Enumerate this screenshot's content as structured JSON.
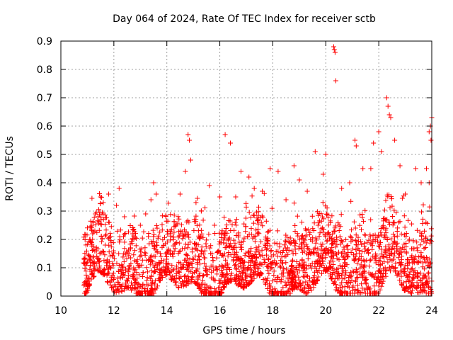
{
  "chart_data": {
    "type": "scatter",
    "title": "Day 064 of 2024, Rate Of TEC Index for receiver sctb",
    "xlabel": "GPS time / hours",
    "ylabel": "ROTI / TECUs",
    "xlim": [
      10,
      24
    ],
    "ylim": [
      0,
      0.9
    ],
    "xticks": [
      10,
      12,
      14,
      16,
      18,
      20,
      22,
      24
    ],
    "yticks": [
      0,
      0.1,
      0.2,
      0.3,
      0.4,
      0.5,
      0.6,
      0.7,
      0.8,
      0.9
    ],
    "grid": true,
    "marker": "+",
    "series": [
      {
        "name": "ROTI",
        "color": "#ff0000",
        "data_start_hour": 10.85,
        "data_end_hour": 24.0,
        "typical_range": [
          0.02,
          0.25
        ],
        "points": [
          [
            11.0,
            0.12
          ],
          [
            11.1,
            0.2
          ],
          [
            11.2,
            0.08
          ],
          [
            11.3,
            0.29
          ],
          [
            11.5,
            0.35
          ],
          [
            11.6,
            0.33
          ],
          [
            11.8,
            0.36
          ],
          [
            12.1,
            0.32
          ],
          [
            12.2,
            0.38
          ],
          [
            12.4,
            0.28
          ],
          [
            12.7,
            0.22
          ],
          [
            13.0,
            0.25
          ],
          [
            13.2,
            0.29
          ],
          [
            13.4,
            0.34
          ],
          [
            13.5,
            0.4
          ],
          [
            13.6,
            0.36
          ],
          [
            14.5,
            0.36
          ],
          [
            14.7,
            0.44
          ],
          [
            14.8,
            0.57
          ],
          [
            14.85,
            0.55
          ],
          [
            14.9,
            0.48
          ],
          [
            15.1,
            0.33
          ],
          [
            15.3,
            0.3
          ],
          [
            15.6,
            0.39
          ],
          [
            15.8,
            0.25
          ],
          [
            16.0,
            0.35
          ],
          [
            16.2,
            0.57
          ],
          [
            16.4,
            0.54
          ],
          [
            16.6,
            0.35
          ],
          [
            16.8,
            0.44
          ],
          [
            17.1,
            0.42
          ],
          [
            17.3,
            0.38
          ],
          [
            17.6,
            0.37
          ],
          [
            17.9,
            0.45
          ],
          [
            18.2,
            0.44
          ],
          [
            18.5,
            0.34
          ],
          [
            18.8,
            0.46
          ],
          [
            19.0,
            0.41
          ],
          [
            19.3,
            0.37
          ],
          [
            19.6,
            0.51
          ],
          [
            19.9,
            0.43
          ],
          [
            20.0,
            0.5
          ],
          [
            20.3,
            0.88
          ],
          [
            20.32,
            0.87
          ],
          [
            20.35,
            0.86
          ],
          [
            20.38,
            0.76
          ],
          [
            20.6,
            0.38
          ],
          [
            20.9,
            0.4
          ],
          [
            21.1,
            0.55
          ],
          [
            21.15,
            0.53
          ],
          [
            21.4,
            0.45
          ],
          [
            21.7,
            0.45
          ],
          [
            21.8,
            0.54
          ],
          [
            22.0,
            0.58
          ],
          [
            22.1,
            0.51
          ],
          [
            22.3,
            0.7
          ],
          [
            22.35,
            0.67
          ],
          [
            22.4,
            0.64
          ],
          [
            22.45,
            0.63
          ],
          [
            22.6,
            0.55
          ],
          [
            22.8,
            0.46
          ],
          [
            23.0,
            0.36
          ],
          [
            23.4,
            0.45
          ],
          [
            23.6,
            0.4
          ],
          [
            23.8,
            0.45
          ],
          [
            23.9,
            0.58
          ],
          [
            23.95,
            0.6
          ],
          [
            24.0,
            0.63
          ],
          [
            23.97,
            0.55
          ],
          [
            23.9,
            0.4
          ]
        ]
      }
    ]
  }
}
